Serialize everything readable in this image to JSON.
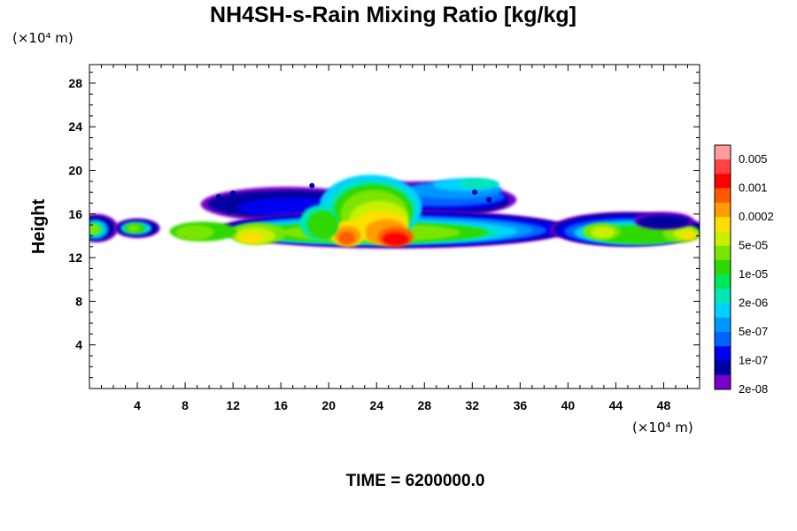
{
  "title": "NH4SH-s-Rain Mixing Ratio [kg/kg]",
  "time_label": "TIME = 6200000.0",
  "unit_y": "(×10⁴ m)",
  "unit_x": "(×10⁴ m)",
  "chart_data": {
    "type": "heatmap",
    "title": "NH4SH-s-Rain Mixing Ratio [kg/kg]",
    "xlabel": "",
    "ylabel": "Height",
    "xunit": "(×10⁴ m)",
    "yunit": "(×10⁴ m)",
    "xlim": [
      0,
      51
    ],
    "ylim": [
      0,
      29.7
    ],
    "x_ticks": [
      4,
      8,
      12,
      16,
      20,
      24,
      28,
      32,
      36,
      40,
      44,
      48
    ],
    "y_ticks": [
      4,
      8,
      12,
      16,
      20,
      24,
      28
    ],
    "grid": false,
    "colorbar": {
      "labels": [
        "0.005",
        "0.001",
        "0.0002",
        "5e-05",
        "1e-05",
        "2e-06",
        "5e-07",
        "1e-07",
        "2e-08"
      ],
      "colors_top_to_bottom": [
        "#ff9c9c",
        "#ff4242",
        "#ff0000",
        "#ff5a00",
        "#ff9c00",
        "#ffde00",
        "#c8f000",
        "#7ae600",
        "#2ed800",
        "#00e65a",
        "#00e6b4",
        "#00d2ff",
        "#0096ff",
        "#0064ff",
        "#0000f0",
        "#0000a0",
        "#7800c8"
      ]
    },
    "cloud_layer": {
      "base_height": 12.6,
      "top_height": 19.8,
      "peak_region_x": [
        21,
        27
      ],
      "peak_region_height": [
        12.8,
        16.5
      ],
      "clear_gap_x": [
        35.8,
        38.8
      ]
    }
  }
}
